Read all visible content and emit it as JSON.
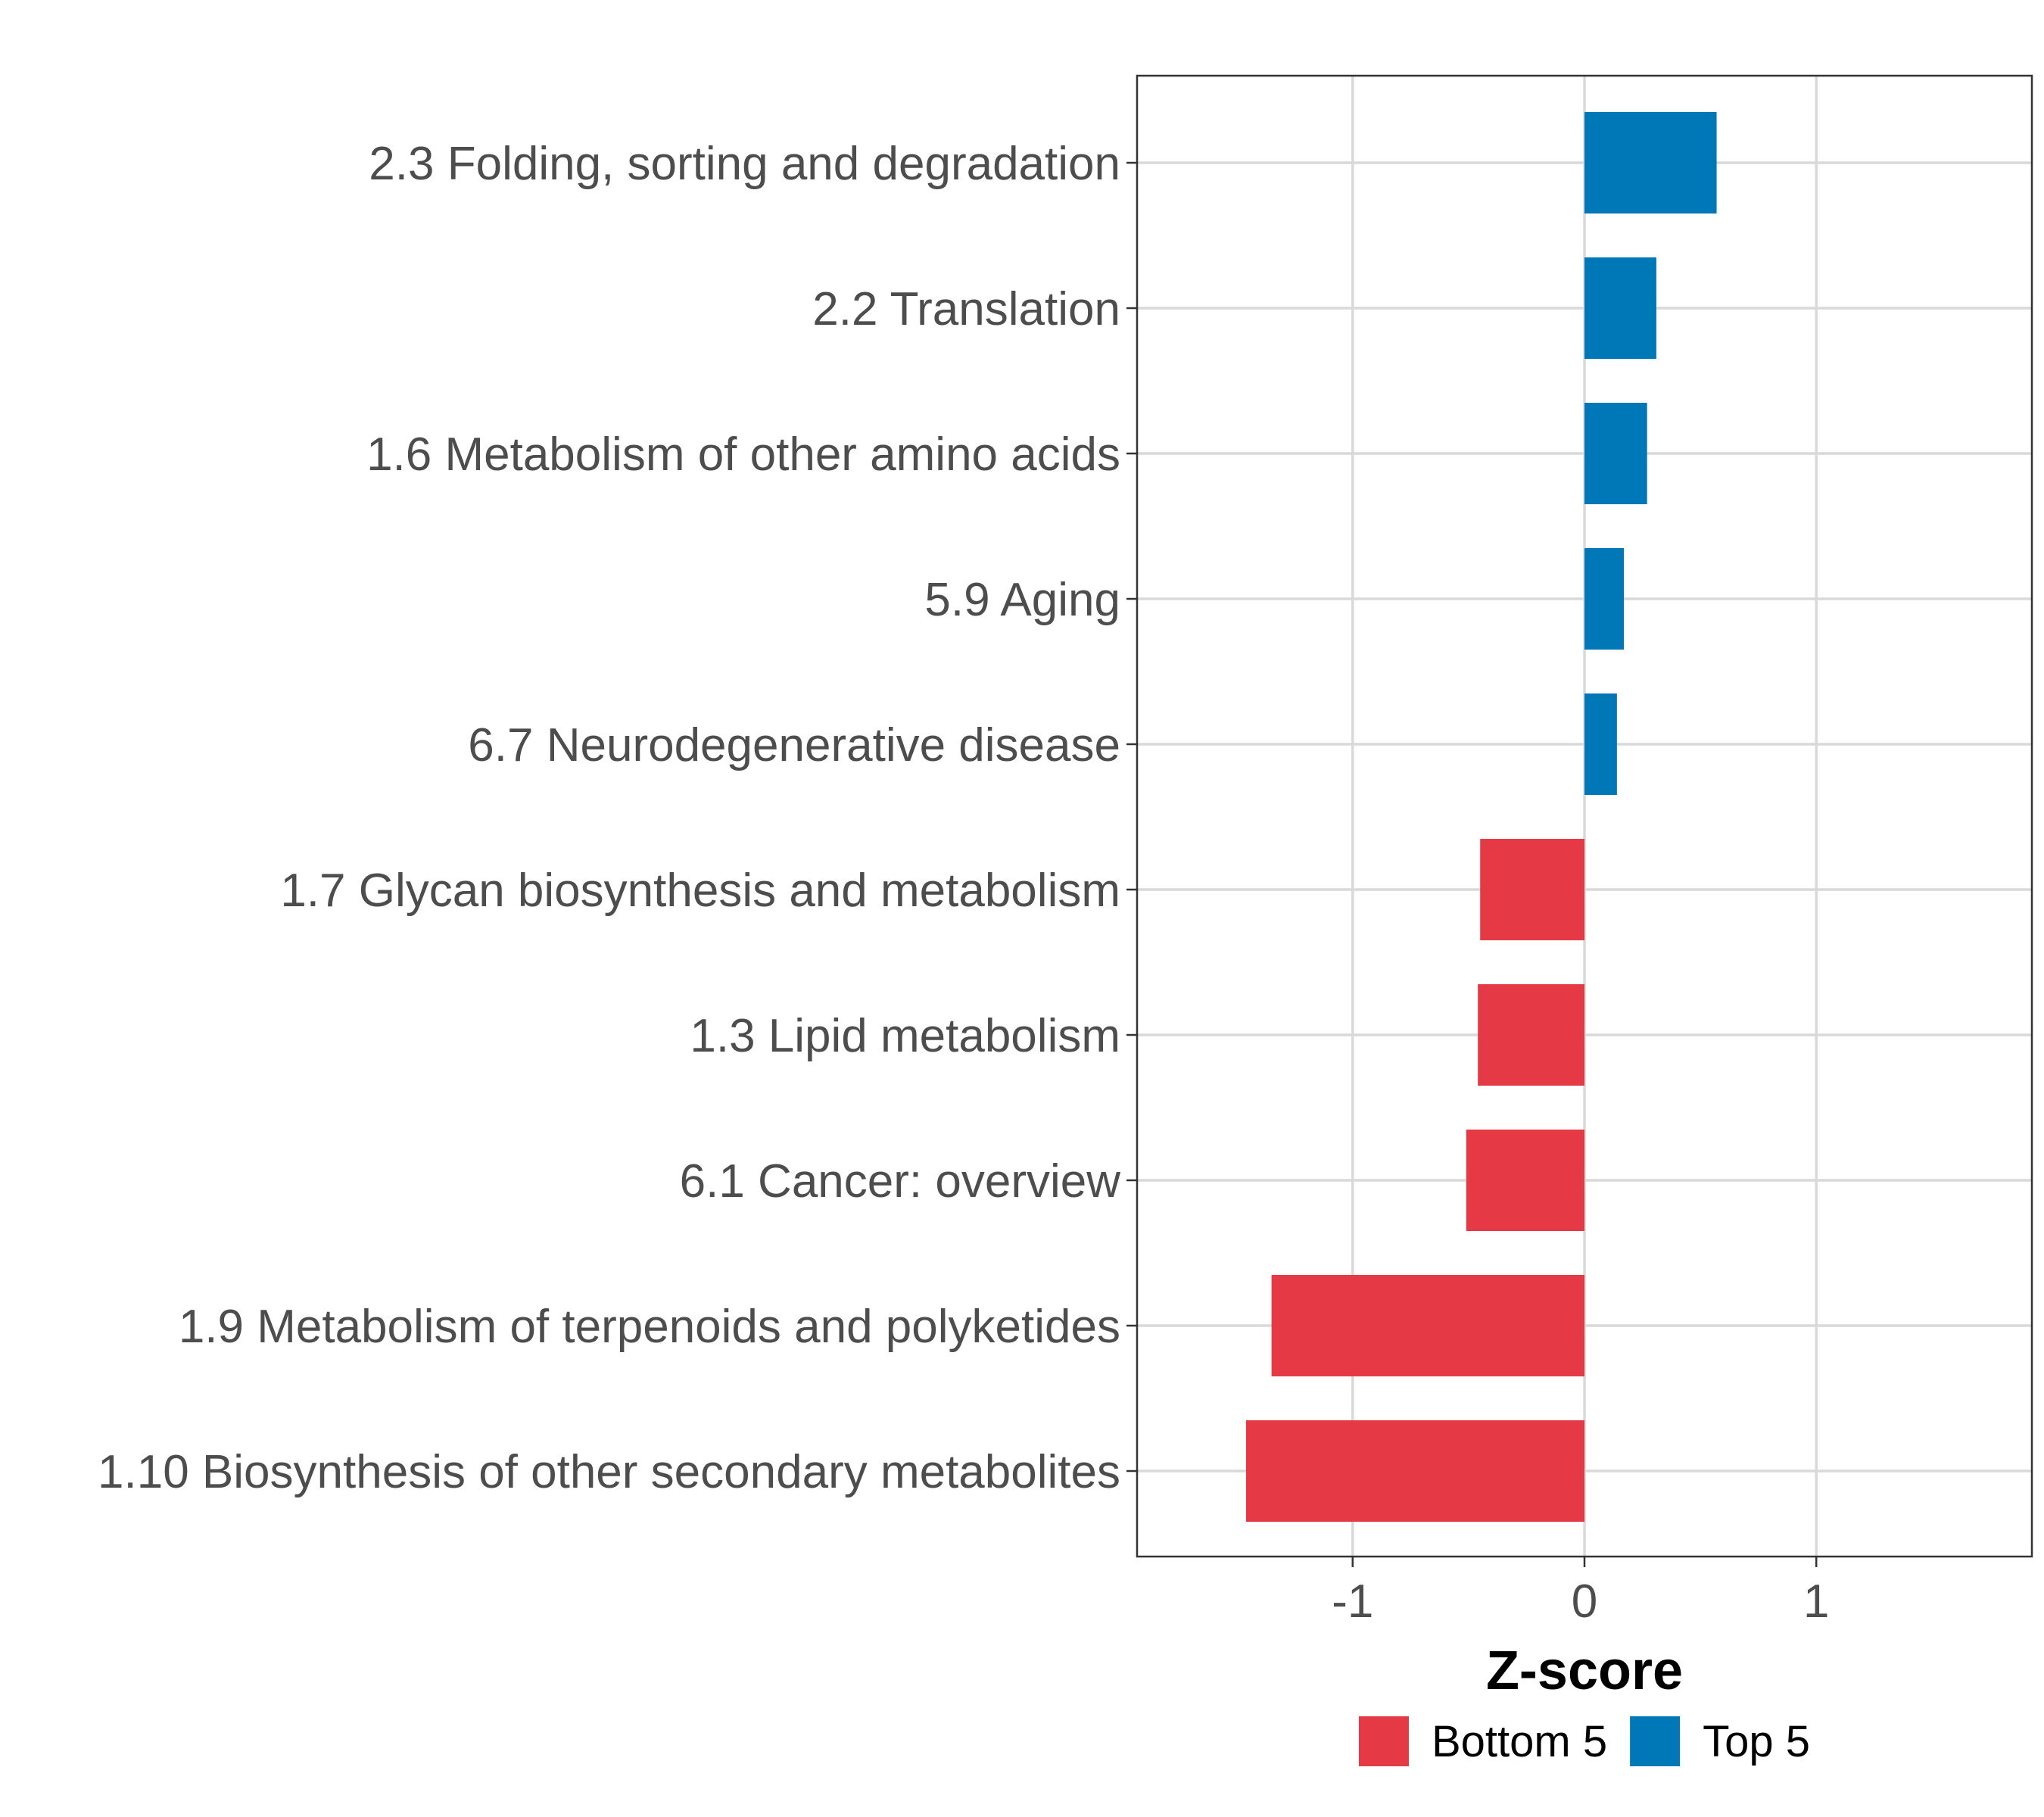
{
  "chart_data": {
    "type": "bar",
    "orientation": "horizontal",
    "categories": [
      "2.3 Folding, sorting and degradation",
      "2.2 Translation",
      "1.6 Metabolism of other amino acids",
      "5.9 Aging",
      "6.7 Neurodegenerative disease",
      "1.7 Glycan biosynthesis and metabolism",
      "1.3 Lipid metabolism",
      "6.1 Cancer: overview",
      "1.9 Metabolism of terpenoids and polyketides",
      "1.10 Biosynthesis of other secondary metabolites"
    ],
    "values": [
      0.57,
      0.31,
      0.27,
      0.17,
      0.14,
      -0.45,
      -0.46,
      -0.51,
      -1.35,
      -1.46
    ],
    "groups": [
      "Top 5",
      "Top 5",
      "Top 5",
      "Top 5",
      "Top 5",
      "Bottom 5",
      "Bottom 5",
      "Bottom 5",
      "Bottom 5",
      "Bottom 5"
    ],
    "xlabel": "Z-score",
    "ylabel": "",
    "xlim": [
      -1.93,
      1.93
    ],
    "xticks": [
      -1,
      0,
      1
    ],
    "xtick_labels": [
      "-1",
      "0",
      "1"
    ],
    "grid": true,
    "legend": {
      "position": "bottom",
      "entries": [
        {
          "label": "Bottom 5",
          "color": "#e63946"
        },
        {
          "label": "Top 5",
          "color": "#0077b6"
        }
      ]
    }
  }
}
